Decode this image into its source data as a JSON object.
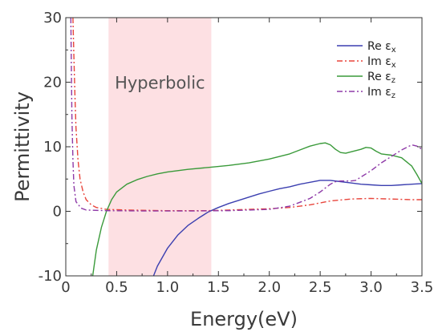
{
  "chart_data": {
    "type": "line",
    "xlabel": "Energy(eV)",
    "ylabel": "Permittivity",
    "xlim": [
      0,
      3.5
    ],
    "ylim": [
      -10,
      30
    ],
    "x_ticks": [
      0,
      0.5,
      1.0,
      1.5,
      2.0,
      2.5,
      3.0,
      3.5
    ],
    "x_tick_labels": [
      "0",
      "0.5",
      "1.0",
      "1.5",
      "2.0",
      "2.5",
      "3.0",
      "3.5"
    ],
    "y_ticks": [
      -10,
      0,
      10,
      20,
      30
    ],
    "y_tick_labels": [
      "-10",
      "0",
      "10",
      "20",
      "30"
    ],
    "grid": false,
    "legend_position": "top-right",
    "shaded_region": {
      "x_start": 0.42,
      "x_end": 1.43,
      "label": "Hyperbolic",
      "color": "#fde0e3"
    },
    "series": [
      {
        "name": "Re ε",
        "subscript": "x",
        "color": "#3b3fb0",
        "dash": "solid",
        "points": [
          [
            0.85,
            -10.5
          ],
          [
            0.9,
            -8.5
          ],
          [
            1.0,
            -5.7
          ],
          [
            1.1,
            -3.7
          ],
          [
            1.2,
            -2.2
          ],
          [
            1.3,
            -1.1
          ],
          [
            1.4,
            -0.1
          ],
          [
            1.5,
            0.6
          ],
          [
            1.6,
            1.2
          ],
          [
            1.7,
            1.7
          ],
          [
            1.8,
            2.2
          ],
          [
            1.9,
            2.7
          ],
          [
            2.0,
            3.1
          ],
          [
            2.1,
            3.5
          ],
          [
            2.2,
            3.8
          ],
          [
            2.3,
            4.2
          ],
          [
            2.4,
            4.5
          ],
          [
            2.5,
            4.8
          ],
          [
            2.6,
            4.8
          ],
          [
            2.7,
            4.6
          ],
          [
            2.8,
            4.4
          ],
          [
            2.9,
            4.2
          ],
          [
            3.0,
            4.1
          ],
          [
            3.1,
            4.0
          ],
          [
            3.2,
            4.0
          ],
          [
            3.3,
            4.1
          ],
          [
            3.4,
            4.2
          ],
          [
            3.5,
            4.3
          ]
        ]
      },
      {
        "name": "Im ε",
        "subscript": "x",
        "color": "#e8453c",
        "dash": "dashdot",
        "points": [
          [
            0.07,
            30
          ],
          [
            0.08,
            24
          ],
          [
            0.09,
            18
          ],
          [
            0.1,
            13
          ],
          [
            0.12,
            8
          ],
          [
            0.14,
            5
          ],
          [
            0.17,
            3
          ],
          [
            0.2,
            1.8
          ],
          [
            0.25,
            1.0
          ],
          [
            0.3,
            0.6
          ],
          [
            0.4,
            0.3
          ],
          [
            0.6,
            0.2
          ],
          [
            0.8,
            0.15
          ],
          [
            1.0,
            0.1
          ],
          [
            1.2,
            0.1
          ],
          [
            1.4,
            0.1
          ],
          [
            1.6,
            0.2
          ],
          [
            1.8,
            0.3
          ],
          [
            2.0,
            0.4
          ],
          [
            2.2,
            0.6
          ],
          [
            2.4,
            1.0
          ],
          [
            2.6,
            1.6
          ],
          [
            2.8,
            1.9
          ],
          [
            3.0,
            2.0
          ],
          [
            3.2,
            1.9
          ],
          [
            3.4,
            1.8
          ],
          [
            3.5,
            1.8
          ]
        ]
      },
      {
        "name": "Re ε",
        "subscript": "z",
        "color": "#3a9a3a",
        "dash": "solid",
        "points": [
          [
            0.26,
            -10.5
          ],
          [
            0.3,
            -6.0
          ],
          [
            0.35,
            -2.5
          ],
          [
            0.4,
            0.0
          ],
          [
            0.45,
            1.8
          ],
          [
            0.5,
            3.0
          ],
          [
            0.6,
            4.2
          ],
          [
            0.7,
            4.9
          ],
          [
            0.8,
            5.4
          ],
          [
            0.9,
            5.8
          ],
          [
            1.0,
            6.1
          ],
          [
            1.2,
            6.5
          ],
          [
            1.4,
            6.8
          ],
          [
            1.6,
            7.1
          ],
          [
            1.8,
            7.5
          ],
          [
            2.0,
            8.1
          ],
          [
            2.2,
            8.9
          ],
          [
            2.3,
            9.5
          ],
          [
            2.4,
            10.1
          ],
          [
            2.5,
            10.5
          ],
          [
            2.55,
            10.6
          ],
          [
            2.6,
            10.3
          ],
          [
            2.65,
            9.6
          ],
          [
            2.7,
            9.1
          ],
          [
            2.75,
            9.0
          ],
          [
            2.8,
            9.2
          ],
          [
            2.9,
            9.6
          ],
          [
            2.95,
            9.9
          ],
          [
            3.0,
            9.8
          ],
          [
            3.05,
            9.3
          ],
          [
            3.1,
            8.9
          ],
          [
            3.2,
            8.7
          ],
          [
            3.3,
            8.3
          ],
          [
            3.4,
            7.0
          ],
          [
            3.45,
            5.7
          ],
          [
            3.5,
            4.3
          ]
        ]
      },
      {
        "name": "Im ε",
        "subscript": "z",
        "color": "#8e3aa8",
        "dash": "dashdot",
        "points": [
          [
            0.05,
            30
          ],
          [
            0.055,
            22
          ],
          [
            0.06,
            15
          ],
          [
            0.07,
            8
          ],
          [
            0.08,
            4
          ],
          [
            0.1,
            1.5
          ],
          [
            0.15,
            0.5
          ],
          [
            0.2,
            0.2
          ],
          [
            0.4,
            0.1
          ],
          [
            0.8,
            0.05
          ],
          [
            1.2,
            0.05
          ],
          [
            1.6,
            0.1
          ],
          [
            1.8,
            0.2
          ],
          [
            2.0,
            0.3
          ],
          [
            2.2,
            0.8
          ],
          [
            2.4,
            2.0
          ],
          [
            2.5,
            3.0
          ],
          [
            2.6,
            4.2
          ],
          [
            2.65,
            4.6
          ],
          [
            2.7,
            4.7
          ],
          [
            2.8,
            4.7
          ],
          [
            2.85,
            4.8
          ],
          [
            2.9,
            5.3
          ],
          [
            3.0,
            6.3
          ],
          [
            3.1,
            7.5
          ],
          [
            3.2,
            8.5
          ],
          [
            3.3,
            9.5
          ],
          [
            3.4,
            10.3
          ],
          [
            3.45,
            10.1
          ],
          [
            3.5,
            9.6
          ]
        ]
      }
    ]
  }
}
